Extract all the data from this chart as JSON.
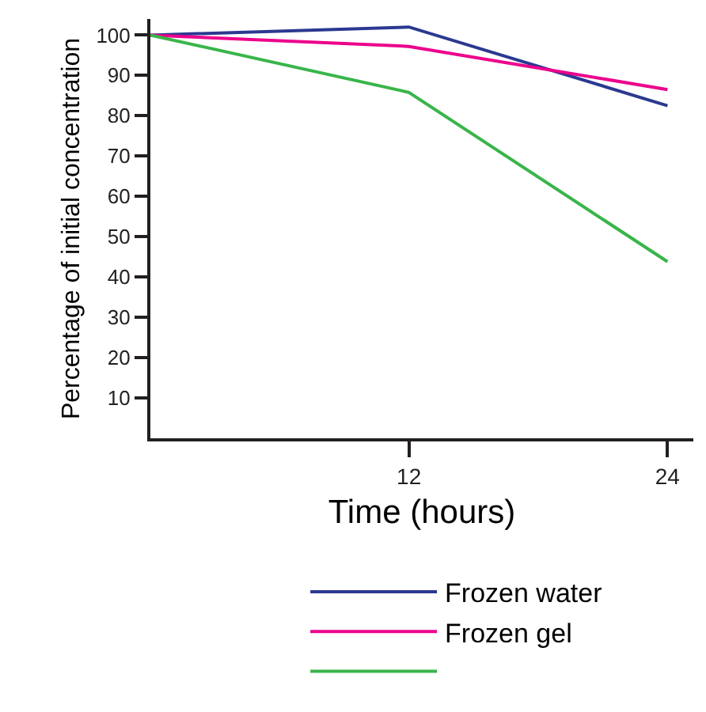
{
  "chart_data": {
    "type": "line",
    "xlabel": "Time (hours)",
    "ylabel": "Percentage of initial concentration",
    "x": [
      0,
      12,
      24
    ],
    "series": [
      {
        "name": "Frozen water",
        "color": "#2b3990",
        "values": [
          100,
          102,
          82.5
        ]
      },
      {
        "name": "Frozen gel",
        "color": "#ec008c",
        "values": [
          100,
          97.2,
          86.5
        ]
      },
      {
        "color": "#39b54a",
        "values": [
          100,
          85.8,
          43.8
        ]
      }
    ],
    "xlim": [
      0,
      25.2
    ],
    "ylim": [
      0,
      104
    ],
    "xticks": [
      12,
      24
    ],
    "yticks": [
      10,
      20,
      30,
      40,
      50,
      60,
      70,
      80,
      90,
      100
    ],
    "legend": "bottom",
    "marker": "none",
    "line_style": "solid"
  }
}
